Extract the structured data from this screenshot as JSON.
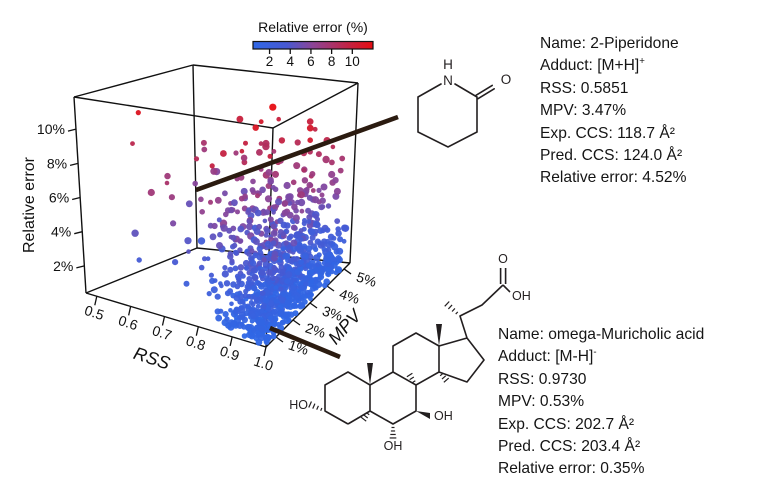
{
  "chart_data": {
    "type": "scatter",
    "projection": "3d",
    "title": "",
    "axes": {
      "x": {
        "label": "RSS",
        "tick_labels": [
          "0.5",
          "0.6",
          "0.7",
          "0.8",
          "0.9",
          "1.0"
        ],
        "range": [
          0.5,
          1.0
        ]
      },
      "y": {
        "label": "MPV",
        "tick_labels": [
          "1%",
          "2%",
          "3%",
          "4%",
          "5%"
        ],
        "range": [
          1,
          5
        ]
      },
      "z": {
        "label": "Relative error",
        "tick_labels": [
          "2%",
          "4%",
          "6%",
          "8%",
          "10%"
        ],
        "range": [
          2,
          10
        ]
      }
    },
    "colorbar": {
      "title": "Relative error (%)",
      "tick_values": [
        2,
        4,
        6,
        8,
        10
      ],
      "value_range": [
        0.4,
        12.0
      ],
      "gradient": [
        {
          "t": 0,
          "c": "#2f67e6"
        },
        {
          "t": 0.28,
          "c": "#4859d2"
        },
        {
          "t": 0.5,
          "c": "#8c4496"
        },
        {
          "t": 0.68,
          "c": "#ad3064"
        },
        {
          "t": 0.85,
          "c": "#cc1c34"
        },
        {
          "t": 1,
          "c": "#e60d12"
        }
      ]
    },
    "point_cloud": {
      "count": 950,
      "seed": 20,
      "err_exp_mean": 2.2,
      "err_min": 0.4,
      "err_max": 11.3,
      "rss_sigma_base": 0.05,
      "rss_sigma_per_err": 0.022,
      "mpv_min": 0.55,
      "mpv_span": 4.55
    },
    "outlier_points": [
      {
        "rss": 0.88,
        "mpv": 2.8,
        "err": 11.5
      }
    ],
    "highlighted_points": [
      {
        "name": "2-Piperidone",
        "rss": 0.5851,
        "mpv": 3.47,
        "err": 4.52
      },
      {
        "name": "omega-Muricholic acid",
        "rss": 0.973,
        "mpv": 0.53,
        "err": 0.35
      }
    ]
  },
  "annotations": [
    {
      "name_line": "Name: 2-Piperidone",
      "adduct_prefix": "Adduct: [M+H]",
      "adduct_charge": "+",
      "rss_line": "RSS: 0.5851",
      "mpv_line": "MPV: 3.47%",
      "exp_line": "Exp. CCS: 118.7 Å²",
      "pred_line": "Pred. CCS: 124.0 Å²",
      "rel_line": "Relative error: 4.52%"
    },
    {
      "name_line": "Name: omega-Muricholic acid",
      "adduct_prefix": "Adduct: [M-H]",
      "adduct_charge": "-",
      "rss_line": "RSS: 0.9730",
      "mpv_line": "MPV: 0.53%",
      "exp_line": "Exp. CCS: 202.7 Å²",
      "pred_line": "Pred. CCS: 203.4 Å²",
      "rel_line": "Relative error: 0.35%"
    }
  ],
  "molecules": {
    "piperidone": {
      "labels": {
        "H": "H",
        "N": "N",
        "O": "O"
      }
    },
    "muricholic": {
      "labels": {
        "HO": "HO",
        "OH_bottom": "OH",
        "OH_right": "OH",
        "O_acid": "O",
        "OH_acid": "OH"
      }
    }
  }
}
